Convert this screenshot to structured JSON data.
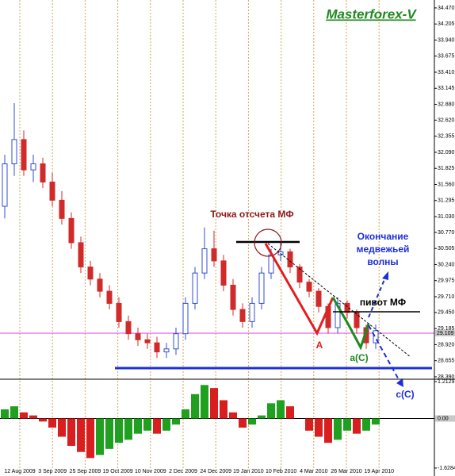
{
  "chart_data": [
    {
      "type": "candlestick",
      "title": "Masterforex-V",
      "xtick_labels": [
        "12 Aug 2009",
        "3 Sep 2009",
        "25 Sep 2009",
        "19 Oct 2009",
        "10 Nov 2009",
        "2 Dec 2009",
        "24 Dec 2009",
        "19 Jan 2010",
        "10 Feb 2010",
        "4 Mar 2010",
        "26 Mar 2010",
        "19 Apr 2010"
      ],
      "open": [
        31.2,
        31.9,
        32.3,
        31.8,
        31.9,
        31.6,
        31.3,
        31.0,
        30.6,
        30.2,
        30.0,
        29.8,
        29.6,
        29.3,
        29.1,
        29.0,
        28.95,
        28.8,
        28.85,
        29.1,
        29.6,
        30.1,
        30.5,
        30.3,
        29.9,
        29.5,
        29.3,
        29.6,
        30.1,
        30.4,
        30.45,
        30.2,
        29.95,
        29.8,
        29.55,
        29.2,
        29.6,
        29.45,
        29.2,
        28.95
      ],
      "high": [
        32.05,
        32.9,
        32.45,
        32.05,
        32.0,
        31.75,
        31.45,
        31.1,
        30.7,
        30.3,
        30.1,
        29.9,
        29.7,
        29.4,
        29.2,
        29.1,
        29.05,
        28.95,
        29.2,
        29.7,
        30.2,
        30.85,
        30.8,
        30.4,
        30.0,
        29.6,
        29.7,
        30.2,
        30.5,
        30.6,
        30.5,
        30.25,
        30.0,
        29.85,
        29.6,
        29.7,
        29.65,
        29.5,
        29.25,
        29.25
      ],
      "low": [
        31.0,
        31.7,
        31.7,
        31.6,
        31.5,
        31.2,
        30.9,
        30.5,
        30.1,
        29.9,
        29.7,
        29.5,
        29.2,
        29.0,
        28.9,
        28.85,
        28.7,
        28.7,
        28.75,
        29.0,
        29.5,
        30.0,
        30.2,
        29.8,
        29.4,
        29.2,
        29.2,
        29.5,
        30.0,
        30.3,
        30.1,
        29.85,
        29.7,
        29.45,
        29.1,
        29.1,
        29.35,
        29.1,
        28.85,
        28.85
      ],
      "close": [
        31.9,
        32.3,
        31.8,
        31.9,
        31.6,
        31.3,
        31.0,
        30.6,
        30.2,
        30.0,
        29.8,
        29.6,
        29.3,
        29.1,
        29.0,
        28.95,
        28.8,
        28.85,
        29.1,
        29.6,
        30.1,
        30.5,
        30.3,
        29.9,
        29.5,
        29.3,
        29.6,
        30.1,
        30.4,
        30.45,
        30.2,
        29.95,
        29.8,
        29.55,
        29.2,
        29.6,
        29.45,
        29.2,
        28.95,
        29.15
      ],
      "up_color": "#2f4fd0",
      "down_color": "#d02a2a",
      "ylim": [
        28.35,
        34.6
      ],
      "yticks": [
        {
          "value": 34.47,
          "label": "34.470"
        },
        {
          "value": 34.205,
          "label": "34.205"
        },
        {
          "value": 33.94,
          "label": "33.940"
        },
        {
          "value": 33.675,
          "label": "33.675"
        },
        {
          "value": 33.41,
          "label": "33.410"
        },
        {
          "value": 33.145,
          "label": "33.145"
        },
        {
          "value": 32.88,
          "label": "32.880"
        },
        {
          "value": 32.62,
          "label": "32.620"
        },
        {
          "value": 32.355,
          "label": "32.355"
        },
        {
          "value": 32.09,
          "label": "32.090"
        },
        {
          "value": 31.825,
          "label": "31.825"
        },
        {
          "value": 31.56,
          "label": "31.560"
        },
        {
          "value": 31.295,
          "label": "31.295"
        },
        {
          "value": 31.03,
          "label": "31.030"
        },
        {
          "value": 30.77,
          "label": "30.770"
        },
        {
          "value": 30.505,
          "label": "30.505"
        },
        {
          "value": 30.24,
          "label": "30.240"
        },
        {
          "value": 29.975,
          "label": "29.975"
        },
        {
          "value": 29.71,
          "label": "29.710"
        },
        {
          "value": 29.45,
          "label": "29.450"
        },
        {
          "value": 29.185,
          "label": "29.185"
        },
        {
          "value": 28.92,
          "label": "28.920"
        },
        {
          "value": 28.655,
          "label": "28.655"
        },
        {
          "value": 28.39,
          "label": "28.390"
        }
      ],
      "current_price": 29.109,
      "annotations": {
        "reference_point": "Точка отсчета МФ",
        "wave_end": [
          "Окончание",
          "медвежьей",
          "волны"
        ],
        "pivot": "пивот МФ",
        "a": "A",
        "ac": "a(C)",
        "cc": "c(C)"
      }
    },
    {
      "type": "bar",
      "values": [
        0.3,
        0.4,
        0.2,
        0.1,
        -0.1,
        -0.3,
        -0.6,
        -0.9,
        -1.1,
        -1.3,
        -1.2,
        -1.0,
        -0.8,
        -0.7,
        -0.5,
        -0.4,
        -0.5,
        -0.4,
        -0.2,
        0.3,
        0.8,
        1.1,
        1.0,
        0.6,
        0.2,
        -0.3,
        -0.2,
        0.1,
        0.5,
        0.6,
        0.4,
        0.0,
        -0.4,
        -0.6,
        -0.8,
        -0.7,
        -0.4,
        -0.5,
        -0.4,
        -0.2
      ],
      "up_color": "#1fa01f",
      "down_color": "#d81e1e",
      "ylim": [
        -1.89,
        1.29
      ],
      "yticks": [
        1.2129,
        {
          "value": 0,
          "label": "0.00"
        },
        -1.6284
      ]
    }
  ]
}
